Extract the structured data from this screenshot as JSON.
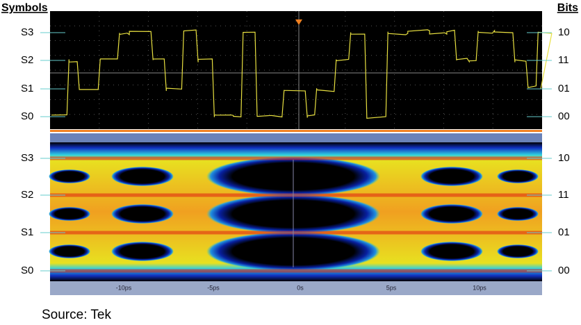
{
  "header": {
    "left": "Symbols",
    "right": "Bits"
  },
  "levels": [
    {
      "symbol": "S3",
      "bits": "10"
    },
    {
      "symbol": "S2",
      "bits": "11"
    },
    {
      "symbol": "S1",
      "bits": "01"
    },
    {
      "symbol": "S0",
      "bits": "00"
    }
  ],
  "time_axis": [
    "-10ps",
    "-5ps",
    "0s",
    "5ps",
    "10ps"
  ],
  "source": "Source: Tek"
}
